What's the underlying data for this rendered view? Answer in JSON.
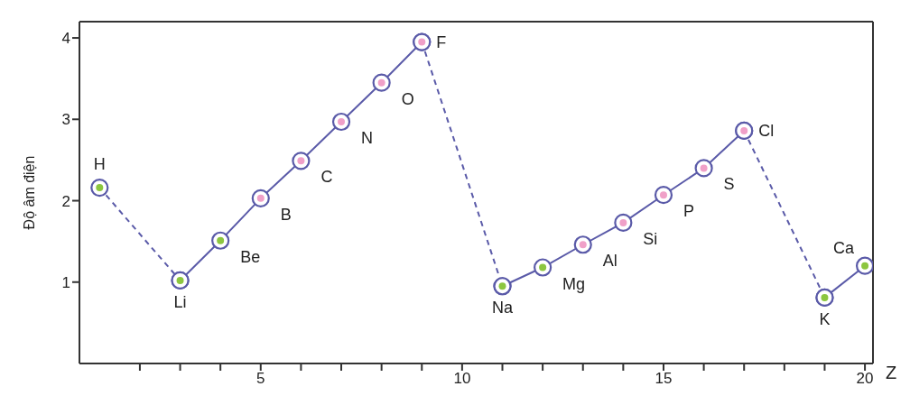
{
  "chart_data": {
    "type": "line",
    "ylabel": "Độ âm điện",
    "xlabel": "Z",
    "xlim": [
      0.5,
      20.2
    ],
    "ylim": [
      0,
      4.2
    ],
    "yticks": [
      1,
      2,
      3,
      4
    ],
    "xticks": [
      {
        "value": 2,
        "label": null
      },
      {
        "value": 3,
        "label": null
      },
      {
        "value": 4,
        "label": null
      },
      5,
      {
        "value": 6,
        "label": null
      },
      {
        "value": 7,
        "label": null
      },
      {
        "value": 8,
        "label": null
      },
      {
        "value": 9,
        "label": null
      },
      10,
      {
        "value": 11,
        "label": null
      },
      {
        "value": 12,
        "label": null
      },
      {
        "value": 13,
        "label": null
      },
      {
        "value": 14,
        "label": null
      },
      15,
      {
        "value": 16,
        "label": null
      },
      {
        "value": 17,
        "label": null
      },
      {
        "value": 18,
        "label": null
      },
      {
        "value": 19,
        "label": null
      },
      20
    ],
    "grid": false,
    "marker": "circle",
    "series": [
      {
        "line_style": "dashed",
        "color": "#5a5aa8",
        "x": [
          1,
          3
        ],
        "values": [
          2.16,
          1.02
        ],
        "colors": [
          "#8cc63f",
          "#8cc63f"
        ]
      },
      {
        "line_style": "dashed",
        "color": "#5a5aa8",
        "x": [
          9,
          11
        ],
        "values": [
          3.95,
          0.95
        ],
        "colors": [
          "#f0a0c8",
          "#8cc63f"
        ]
      },
      {
        "line_style": "dashed",
        "color": "#5a5aa8",
        "x": [
          17,
          19
        ],
        "values": [
          2.86,
          0.81
        ],
        "colors": [
          "#f0a0c8",
          "#8cc63f"
        ]
      },
      {
        "line_style": "solid",
        "color": "#5a5aa8",
        "x": [
          3,
          4,
          5,
          6,
          7,
          8,
          9
        ],
        "values": [
          1.02,
          1.51,
          2.03,
          2.49,
          2.97,
          3.45,
          3.95
        ],
        "colors": [
          "#8cc63f",
          "#8cc63f",
          "#f0a0c8",
          "#f0a0c8",
          "#f0a0c8",
          "#f0a0c8",
          "#f0a0c8"
        ]
      },
      {
        "line_style": "solid",
        "color": "#5a5aa8",
        "x": [
          11,
          12,
          13,
          14,
          15,
          16,
          17
        ],
        "values": [
          0.95,
          1.18,
          1.46,
          1.73,
          2.07,
          2.4,
          2.86
        ],
        "colors": [
          "#8cc63f",
          "#8cc63f",
          "#f0a0c8",
          "#f0a0c8",
          "#f0a0c8",
          "#f0a0c8",
          "#f0a0c8"
        ]
      },
      {
        "line_style": "solid",
        "color": "#5a5aa8",
        "x": [
          19,
          20
        ],
        "values": [
          0.81,
          1.2
        ],
        "colors": [
          "#8cc63f",
          "#8cc63f"
        ]
      }
    ],
    "annotations": [
      {
        "text": "H",
        "x": 1,
        "y": 2.16
      },
      {
        "text": "Li",
        "x": 3,
        "y": 1.02
      },
      {
        "text": "Be",
        "x": 4,
        "y": 1.51
      },
      {
        "text": "B",
        "x": 5,
        "y": 2.03
      },
      {
        "text": "C",
        "x": 6,
        "y": 2.49
      },
      {
        "text": "N",
        "x": 7,
        "y": 2.97
      },
      {
        "text": "O",
        "x": 8,
        "y": 3.45
      },
      {
        "text": "F",
        "x": 9,
        "y": 3.95
      },
      {
        "text": "Na",
        "x": 11,
        "y": 0.95
      },
      {
        "text": "Mg",
        "x": 12,
        "y": 1.18
      },
      {
        "text": "Al",
        "x": 13,
        "y": 1.46
      },
      {
        "text": "Si",
        "x": 14,
        "y": 1.73
      },
      {
        "text": "P",
        "x": 15,
        "y": 2.07
      },
      {
        "text": "S",
        "x": 16,
        "y": 2.4
      },
      {
        "text": "Cl",
        "x": 17,
        "y": 2.86
      },
      {
        "text": "K",
        "x": 19,
        "y": 0.81
      },
      {
        "text": "Ca",
        "x": 20,
        "y": 1.2
      }
    ]
  }
}
